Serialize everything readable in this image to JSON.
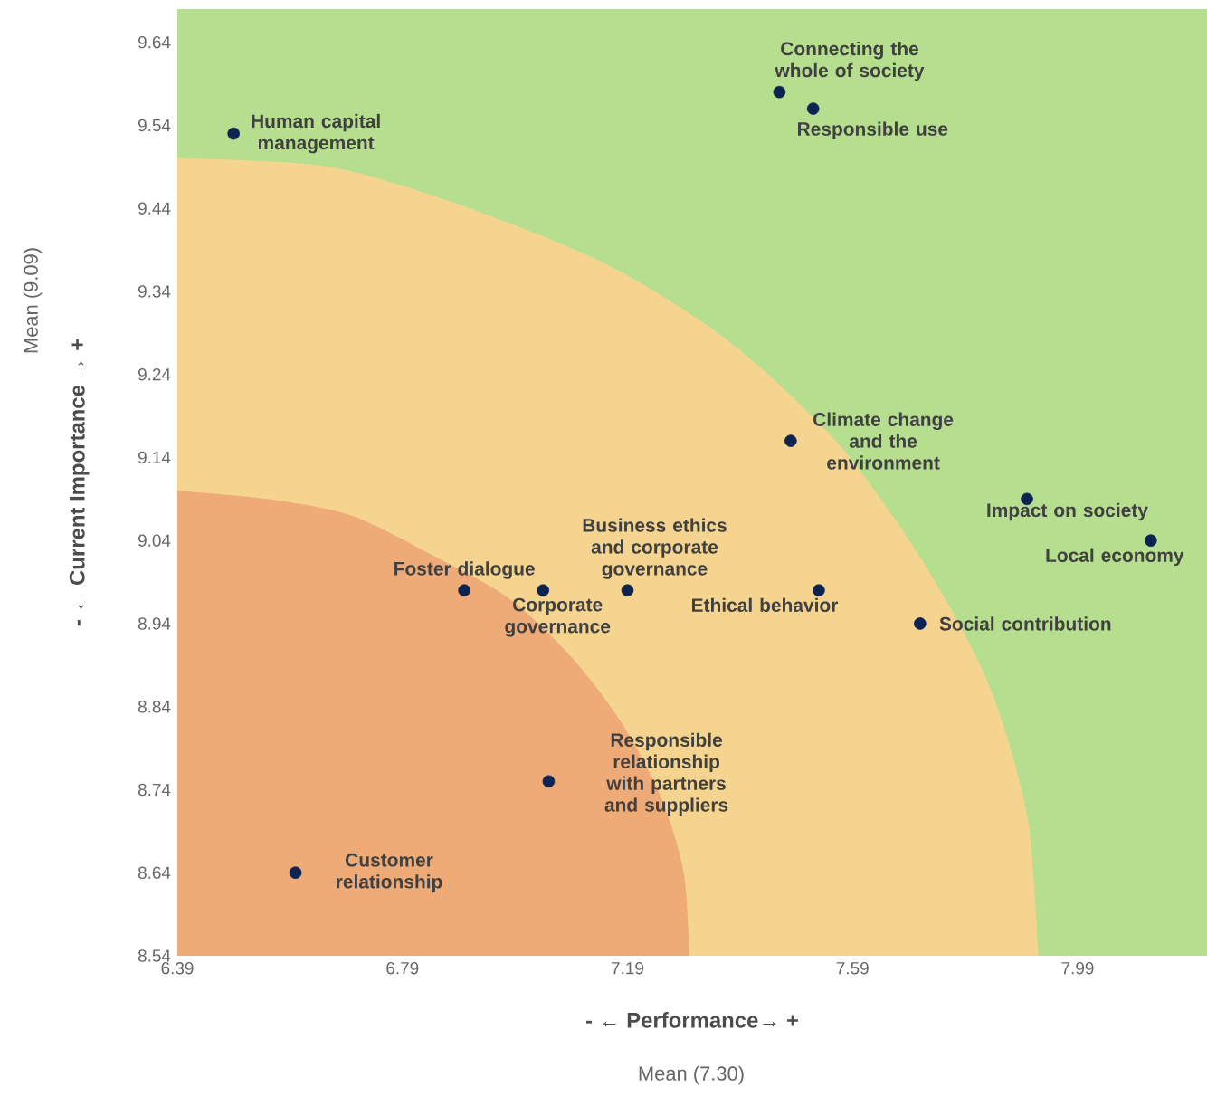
{
  "chart_data": {
    "type": "scatter",
    "xlabel": "- ← Performance→ +",
    "ylabel": "- ← Current Importance → +",
    "x": [
      6.49,
      7.46,
      7.52,
      7.48,
      7.9,
      8.12,
      6.9,
      7.04,
      7.19,
      7.53,
      7.71,
      7.05,
      6.6
    ],
    "marker": "circle",
    "series": [
      {
        "color": "#0d2350",
        "values": [
          9.53,
          9.58,
          9.56,
          9.16,
          9.09,
          9.04,
          8.98,
          8.98,
          8.98,
          8.98,
          8.94,
          8.75,
          8.64
        ]
      },
      {
        "type": "area",
        "marker": "none",
        "color": "#f5d48f",
        "x": [
          7.92,
          7.9,
          7.83,
          7.71,
          7.56,
          7.37,
          7.16,
          6.91,
          6.66,
          6.39
        ],
        "values": [
          8.54,
          8.71,
          8.87,
          9.02,
          9.16,
          9.28,
          9.37,
          9.44,
          9.49,
          9.5
        ]
      },
      {
        "type": "area",
        "marker": "none",
        "color": "#eeaa77",
        "x": [
          7.3,
          7.29,
          7.25,
          7.18,
          7.09,
          6.98,
          6.85,
          6.7,
          6.55,
          6.39
        ],
        "values": [
          8.54,
          8.64,
          8.73,
          8.82,
          8.9,
          8.97,
          9.02,
          9.07,
          9.09,
          9.1
        ]
      }
    ],
    "bands": [
      {
        "axis": "y",
        "from": 8.54,
        "to": 9.68,
        "color": "#b5df8e"
      }
    ],
    "xlim": [
      6.39,
      8.22
    ],
    "ylim": [
      8.54,
      9.68
    ],
    "xticks": [
      6.39,
      6.79,
      7.19,
      7.59,
      7.99
    ],
    "yticks": [
      8.54,
      8.64,
      8.74,
      8.84,
      8.94,
      9.04,
      9.14,
      9.24,
      9.34,
      9.44,
      9.54,
      9.64
    ],
    "grid": false,
    "annotations": [
      {
        "text": "Human capital management",
        "x": 6.49,
        "y": 9.53
      },
      {
        "text": "Connecting the whole of society",
        "x": 7.46,
        "y": 9.58
      },
      {
        "text": "Responsible use",
        "x": 7.52,
        "y": 9.56
      },
      {
        "text": "Climate change and the environment",
        "x": 7.48,
        "y": 9.16
      },
      {
        "text": "Impact on society",
        "x": 7.9,
        "y": 9.09
      },
      {
        "text": "Local economy",
        "x": 8.12,
        "y": 9.04
      },
      {
        "text": "Foster dialogue",
        "x": 6.9,
        "y": 8.98
      },
      {
        "text": "Corporate governance",
        "x": 7.04,
        "y": 8.98
      },
      {
        "text": "Business ethics and corporate governance",
        "x": 7.19,
        "y": 8.98
      },
      {
        "text": "Ethical behavior",
        "x": 7.53,
        "y": 8.98
      },
      {
        "text": "Social contribution",
        "x": 7.71,
        "y": 8.94
      },
      {
        "text": "Responsible relationship with partners and suppliers",
        "x": 7.05,
        "y": 8.75
      },
      {
        "text": "Customer relationship",
        "x": 6.6,
        "y": 8.64
      },
      "Mean (9.09)",
      "Mean (7.30)"
    ]
  }
}
